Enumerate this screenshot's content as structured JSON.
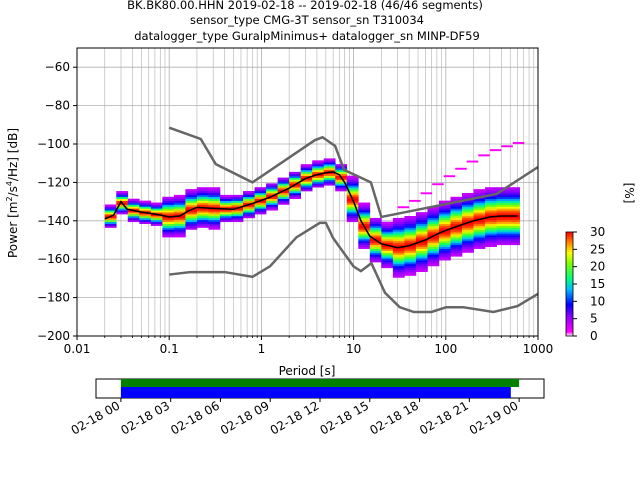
{
  "chart_data": [
    {
      "type": "heatmap",
      "title_lines": [
        "BK.BK80.00.HHN   2019-02-18 -- 2019-02-18  (46/46 segments)",
        "sensor_type CMG-3T sensor_sn T310034",
        "datalogger_type GuralpMinimus+ datalogger_sn MINP-DF59"
      ],
      "xlabel": "Period [s]",
      "ylabel_main": "Power [m",
      "ylabel_sup1": "2",
      "ylabel_mid": "/s",
      "ylabel_sup2": "4",
      "ylabel_tail": "/Hz] [dB]",
      "xscale": "log",
      "xlim": [
        0.01,
        1000
      ],
      "ylim": [
        -200,
        -50
      ],
      "xticks": [
        {
          "value": 0.01,
          "label": "0.01"
        },
        {
          "value": 0.1,
          "label": "0.1"
        },
        {
          "value": 1,
          "label": "1"
        },
        {
          "value": 10,
          "label": "10"
        },
        {
          "value": 100,
          "label": "100"
        },
        {
          "value": 1000,
          "label": "1000"
        }
      ],
      "yticks": [
        {
          "value": -60,
          "label": "−60"
        },
        {
          "value": -80,
          "label": "−80"
        },
        {
          "value": -100,
          "label": "−100"
        },
        {
          "value": -120,
          "label": "−120"
        },
        {
          "value": -140,
          "label": "−140"
        },
        {
          "value": -160,
          "label": "−160"
        },
        {
          "value": -180,
          "label": "−180"
        },
        {
          "value": -200,
          "label": "−200"
        }
      ],
      "grid": true,
      "nhnm": {
        "x": [
          0.1,
          0.22,
          0.32,
          0.8,
          3.8,
          4.6,
          6.3,
          7.9,
          15.4,
          20,
          354.8,
          1000
        ],
        "y": [
          -91.5,
          -97.4,
          -110.5,
          -120,
          -98,
          -96.5,
          -101,
          -113.5,
          -120,
          -138,
          -126,
          -112
        ]
      },
      "nlnm": {
        "x": [
          0.1,
          0.17,
          0.4,
          0.8,
          1.24,
          2.4,
          4.3,
          5.0,
          6.0,
          10,
          12,
          15.6,
          21.9,
          31.6,
          45,
          70,
          101,
          154,
          328,
          600,
          1000
        ],
        "y": [
          -168,
          -166.7,
          -166.7,
          -169.2,
          -163.7,
          -148.6,
          -141.1,
          -141.1,
          -149,
          -163.8,
          -166.2,
          -162.1,
          -177.5,
          -185,
          -187.5,
          -187.5,
          -185,
          -185,
          -187.5,
          -184.4,
          -178
        ]
      },
      "mode_curve": {
        "x": [
          0.02,
          0.025,
          0.03,
          0.035,
          0.04,
          0.05,
          0.06,
          0.08,
          0.1,
          0.13,
          0.16,
          0.2,
          0.3,
          0.5,
          0.8,
          1.2,
          2,
          3,
          4,
          5,
          6,
          7,
          8,
          10,
          12,
          15,
          20,
          30,
          40,
          60,
          80,
          100,
          150,
          200,
          300,
          400,
          600
        ],
        "y": [
          -139,
          -137,
          -130,
          -134,
          -134.5,
          -135.5,
          -136,
          -137,
          -138,
          -137.5,
          -135,
          -133,
          -133.5,
          -134,
          -131,
          -128,
          -123,
          -118,
          -116,
          -115,
          -114.5,
          -116,
          -120,
          -130,
          -140,
          -148,
          -152,
          -154,
          -153,
          -150,
          -147,
          -145,
          -142,
          -140,
          -138,
          -137.5,
          -137.5
        ]
      },
      "colorbar": {
        "label": "[%]",
        "min": 0,
        "max": 30,
        "ticks": [
          {
            "value": 0,
            "label": "0"
          },
          {
            "value": 5,
            "label": "5"
          },
          {
            "value": 10,
            "label": "10"
          },
          {
            "value": 15,
            "label": "15"
          },
          {
            "value": 20,
            "label": "20"
          },
          {
            "value": 25,
            "label": "25"
          },
          {
            "value": 30,
            "label": "30"
          }
        ]
      }
    },
    {
      "type": "timeline",
      "xlim_hours": [
        -1.5,
        25.5
      ],
      "xticks": [
        {
          "hour": 0,
          "label": "02-18 00"
        },
        {
          "hour": 3,
          "label": "02-18 03"
        },
        {
          "hour": 6,
          "label": "02-18 06"
        },
        {
          "hour": 9,
          "label": "02-18 09"
        },
        {
          "hour": 12,
          "label": "02-18 12"
        },
        {
          "hour": 15,
          "label": "02-18 15"
        },
        {
          "hour": 18,
          "label": "02-18 18"
        },
        {
          "hour": 21,
          "label": "02-18 21"
        },
        {
          "hour": 24,
          "label": "02-19 00"
        }
      ],
      "data_coverage_hours": [
        0,
        24
      ],
      "psd_coverage_hours": [
        0,
        23.5
      ],
      "colors": {
        "data": "#008000",
        "psd": "#0000ff"
      }
    }
  ]
}
